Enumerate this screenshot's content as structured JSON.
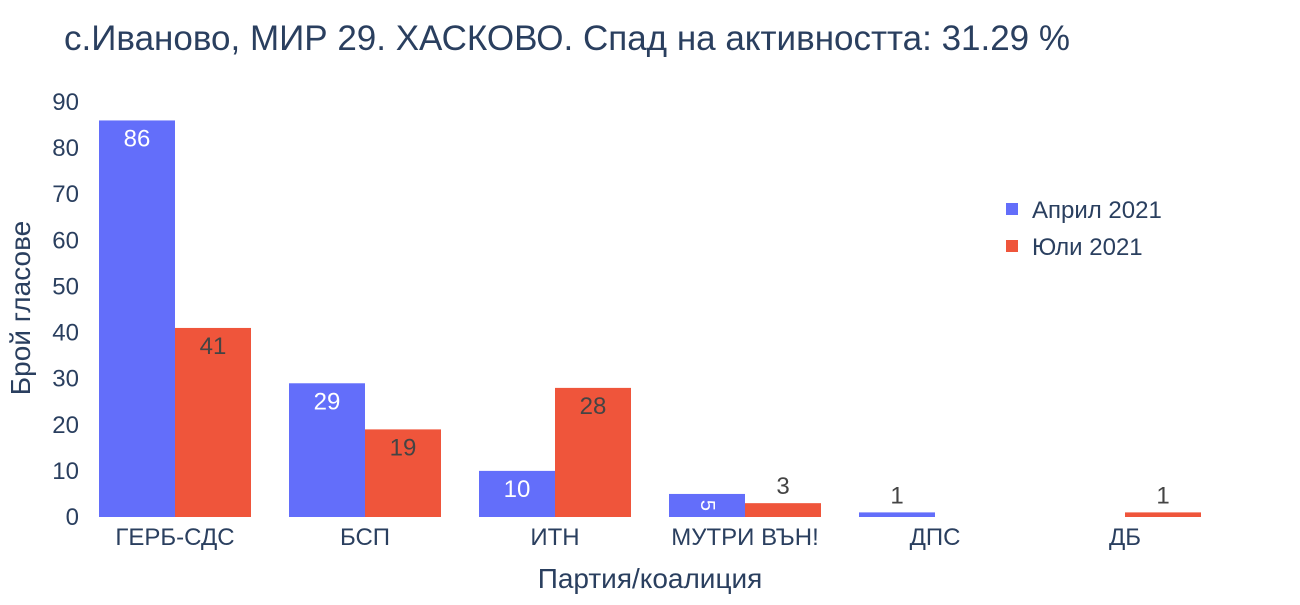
{
  "chart_data": {
    "type": "bar",
    "title": "с.Иваново, МИР 29. ХАСКОВО. Спад на активността: 31.29 %",
    "xlabel": "Партия/коалиция",
    "ylabel": "Брой гласове",
    "categories": [
      "ГЕРБ-СДС",
      "БСП",
      "ИТН",
      "МУТРИ ВЪН!",
      "ДПС",
      "ДБ"
    ],
    "series": [
      {
        "name": "Април 2021",
        "color": "#636efa",
        "values": [
          86,
          29,
          10,
          5,
          1,
          0
        ],
        "labels": [
          "86",
          "29",
          "10",
          "5",
          "1",
          ""
        ]
      },
      {
        "name": "Юли 2021",
        "color": "#ef553b",
        "values": [
          41,
          19,
          28,
          3,
          0,
          1
        ],
        "labels": [
          "41",
          "19",
          "28",
          "3",
          "",
          "1"
        ]
      }
    ],
    "ylim": [
      0,
      90
    ],
    "yticks": [
      0,
      10,
      20,
      30,
      40,
      50,
      60,
      70,
      80,
      90
    ],
    "grid": false,
    "legend_position": "top-right"
  },
  "colors": {
    "text": "#2a3f5f",
    "inside_label_light": "#ffffff",
    "inside_label_dark": "#444444"
  }
}
